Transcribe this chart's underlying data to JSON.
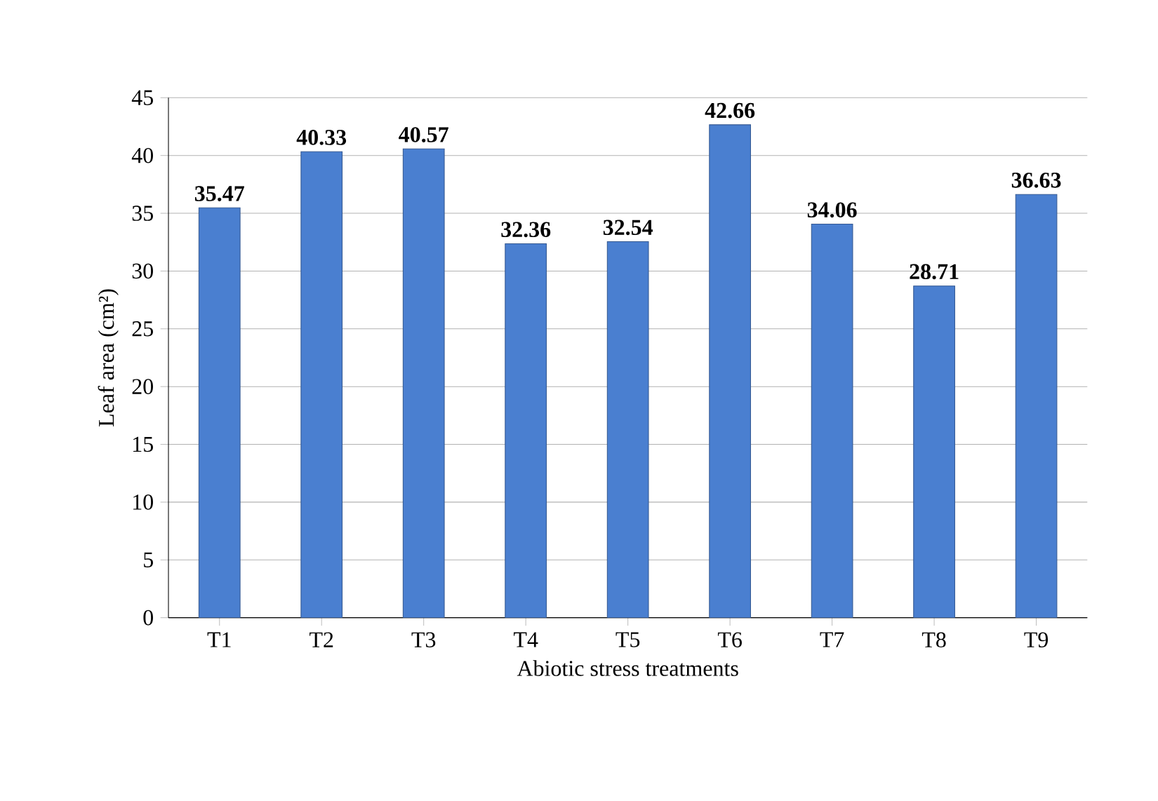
{
  "chart_data": {
    "type": "bar",
    "xlabel": "Abiotic stress treatments",
    "ylabel": "Leaf area (cm²)",
    "categories": [
      "T1",
      "T2",
      "T3",
      "T4",
      "T5",
      "T6",
      "T7",
      "T8",
      "T9"
    ],
    "values": [
      35.47,
      40.33,
      40.57,
      32.36,
      32.54,
      42.66,
      34.06,
      28.71,
      36.63
    ],
    "color": "#4a7fd0",
    "ylim": [
      0,
      45
    ],
    "yticks": [
      0,
      5,
      10,
      15,
      20,
      25,
      30,
      35,
      40,
      45
    ],
    "grid": "y",
    "data_labels": true
  }
}
